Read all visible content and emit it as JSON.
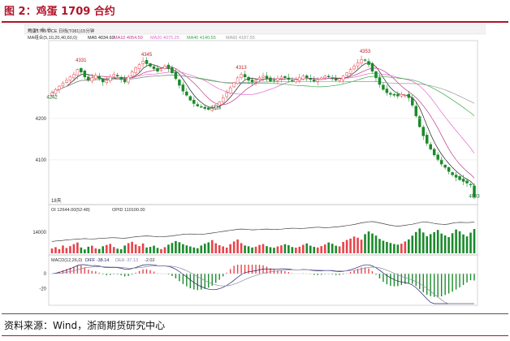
{
  "figure": {
    "title": "图 2：鸡蛋 1709 合约",
    "source": "资料来源：Wind，浙商期货研究中心"
  },
  "colors": {
    "title_red": "#b0152a",
    "candle_up": "#e8434a",
    "candle_down": "#1a8a2a",
    "ma5": "#222222",
    "ma10": "#c0398a",
    "ma20": "#e06ad0",
    "ma40": "#3aa84a",
    "ma60": "#999999",
    "oi": "#444444",
    "diff": "#222266",
    "dea": "#8888aa"
  },
  "chart_data": [
    {
      "type": "candlestick",
      "panel": "price",
      "header": {
        "instrument": "鸡蛋1709 DCE",
        "interval": "日线(T081)15分钟",
        "ma_group": "MA组合(5,10,20,40,60,0)",
        "ma_values": [
          {
            "name": "MA5",
            "value": "4034.60"
          },
          {
            "name": "MA10",
            "value": "4054.50"
          },
          {
            "name": "MA20",
            "value": "4075.25"
          },
          {
            "name": "MA40",
            "value": "4140.55"
          },
          {
            "name": "MA60",
            "value": "4187.55"
          }
        ]
      },
      "y_ticks": [
        4200,
        4100
      ],
      "ylim": [
        4000,
        4380
      ],
      "annotations": [
        {
          "label": "4331",
          "index": 8,
          "price": 4331
        },
        {
          "label": "4345",
          "index": 26,
          "price": 4345
        },
        {
          "label": "4313",
          "index": 52,
          "price": 4313
        },
        {
          "label": "4353",
          "index": 86,
          "price": 4353
        },
        {
          "label": "4242",
          "index": 0,
          "price": 4242
        },
        {
          "label": "4216",
          "index": 45,
          "price": 4216
        },
        {
          "label": "4003",
          "index": 116,
          "price": 4003
        }
      ],
      "date_label": "18天",
      "closes": [
        4262,
        4270,
        4278,
        4285,
        4292,
        4300,
        4306,
        4318,
        4312,
        4300,
        4292,
        4298,
        4304,
        4296,
        4288,
        4292,
        4300,
        4306,
        4302,
        4294,
        4288,
        4300,
        4312,
        4322,
        4330,
        4338,
        4332,
        4326,
        4320,
        4314,
        4320,
        4326,
        4322,
        4310,
        4296,
        4280,
        4266,
        4256,
        4244,
        4236,
        4230,
        4228,
        4224,
        4222,
        4226,
        4232,
        4240,
        4250,
        4262,
        4274,
        4286,
        4298,
        4306,
        4300,
        4292,
        4288,
        4292,
        4298,
        4302,
        4296,
        4290,
        4292,
        4296,
        4300,
        4298,
        4294,
        4290,
        4294,
        4298,
        4302,
        4298,
        4294,
        4290,
        4294,
        4298,
        4302,
        4300,
        4296,
        4292,
        4296,
        4302,
        4310,
        4318,
        4326,
        4334,
        4342,
        4340,
        4330,
        4314,
        4298,
        4282,
        4270,
        4262,
        4258,
        4256,
        4254,
        4258,
        4256,
        4250,
        4232,
        4206,
        4180,
        4158,
        4140,
        4126,
        4112,
        4100,
        4090,
        4082,
        4072,
        4064,
        4058,
        4052,
        4048,
        4044,
        4040,
        4010
      ]
    },
    {
      "type": "bar",
      "panel": "volume",
      "header": {
        "oi_label": "OI",
        "oi_value": "12644.00(52:48)",
        "opid_label": "OPID",
        "opid_value": "110100.00"
      },
      "y_ticks": [
        14000
      ],
      "ylim": [
        0,
        26000
      ],
      "volumes": [
        3200,
        4100,
        2800,
        5200,
        3600,
        4800,
        6100,
        7200,
        3900,
        2600,
        4400,
        5100,
        3300,
        2900,
        4700,
        5600,
        6300,
        4200,
        3100,
        2700,
        5200,
        6800,
        7700,
        5900,
        4800,
        6600,
        3900,
        4300,
        5100,
        3600,
        2800,
        4100,
        5800,
        6900,
        8200,
        7400,
        6100,
        5300,
        4600,
        3900,
        3400,
        5200,
        6400,
        7300,
        8800,
        6700,
        5400,
        4600,
        3800,
        6100,
        7900,
        9200,
        6800,
        5200,
        4700,
        3900,
        4400,
        5600,
        6200,
        4800,
        4100,
        3700,
        4600,
        5300,
        6100,
        5400,
        4200,
        3800,
        4400,
        5700,
        6600,
        5100,
        4300,
        3900,
        4800,
        5900,
        7200,
        6400,
        5100,
        4600,
        7600,
        8900,
        9800,
        11200,
        10400,
        9100,
        12800,
        14600,
        13200,
        11800,
        9600,
        8400,
        7600,
        6900,
        6200,
        5800,
        6400,
        7900,
        9300,
        11800,
        14200,
        16600,
        13900,
        11400,
        12800,
        14100,
        15600,
        13200,
        11900,
        10800,
        13400,
        15900,
        14700,
        12600,
        11300,
        13800,
        16200
      ],
      "open_interest": [
        9000,
        9100,
        9150,
        9200,
        9300,
        9350,
        9400,
        9450,
        9500,
        9550,
        9500,
        9480,
        9520,
        9580,
        9600,
        9650,
        9700,
        9720,
        9680,
        9640,
        9620,
        9700,
        9800,
        9900,
        9950,
        10000,
        10050,
        10000,
        9950,
        9900,
        9880,
        9920,
        9980,
        10050,
        10150,
        10250,
        10350,
        10400,
        10420,
        10380,
        10340,
        10360,
        10420,
        10500,
        10600,
        10700,
        10800,
        10900,
        11000,
        11100,
        11200,
        11300,
        11350,
        11300,
        11250,
        11200,
        11220,
        11260,
        11300,
        11350,
        11300,
        11260,
        11280,
        11320,
        11400,
        11450,
        11500,
        11480,
        11450,
        11470,
        11520,
        11600,
        11650,
        11700,
        11650,
        11600,
        11620,
        11680,
        11750,
        11800,
        11900,
        12000,
        12100,
        12200,
        12350,
        12500,
        12600,
        12700,
        12750,
        12650,
        12500,
        12350,
        12200,
        12050,
        11950,
        11900,
        11950,
        12050,
        12150,
        12250,
        12400,
        12550,
        12700,
        12650,
        12550,
        12400,
        12300,
        12250,
        12200,
        12300,
        12450,
        12550,
        12600,
        12580,
        12560,
        12600,
        12644
      ]
    },
    {
      "type": "macd",
      "panel": "macd",
      "header": {
        "label": "MACD(12,26,0)",
        "diff_label": "DIFF",
        "diff_value": "-38.14",
        "dea_label": "DEA",
        "dea_value": "-37.13",
        "macd_value": "-2.02"
      },
      "y_ticks": [
        0,
        -20
      ],
      "ylim": [
        -40,
        12
      ]
    }
  ]
}
